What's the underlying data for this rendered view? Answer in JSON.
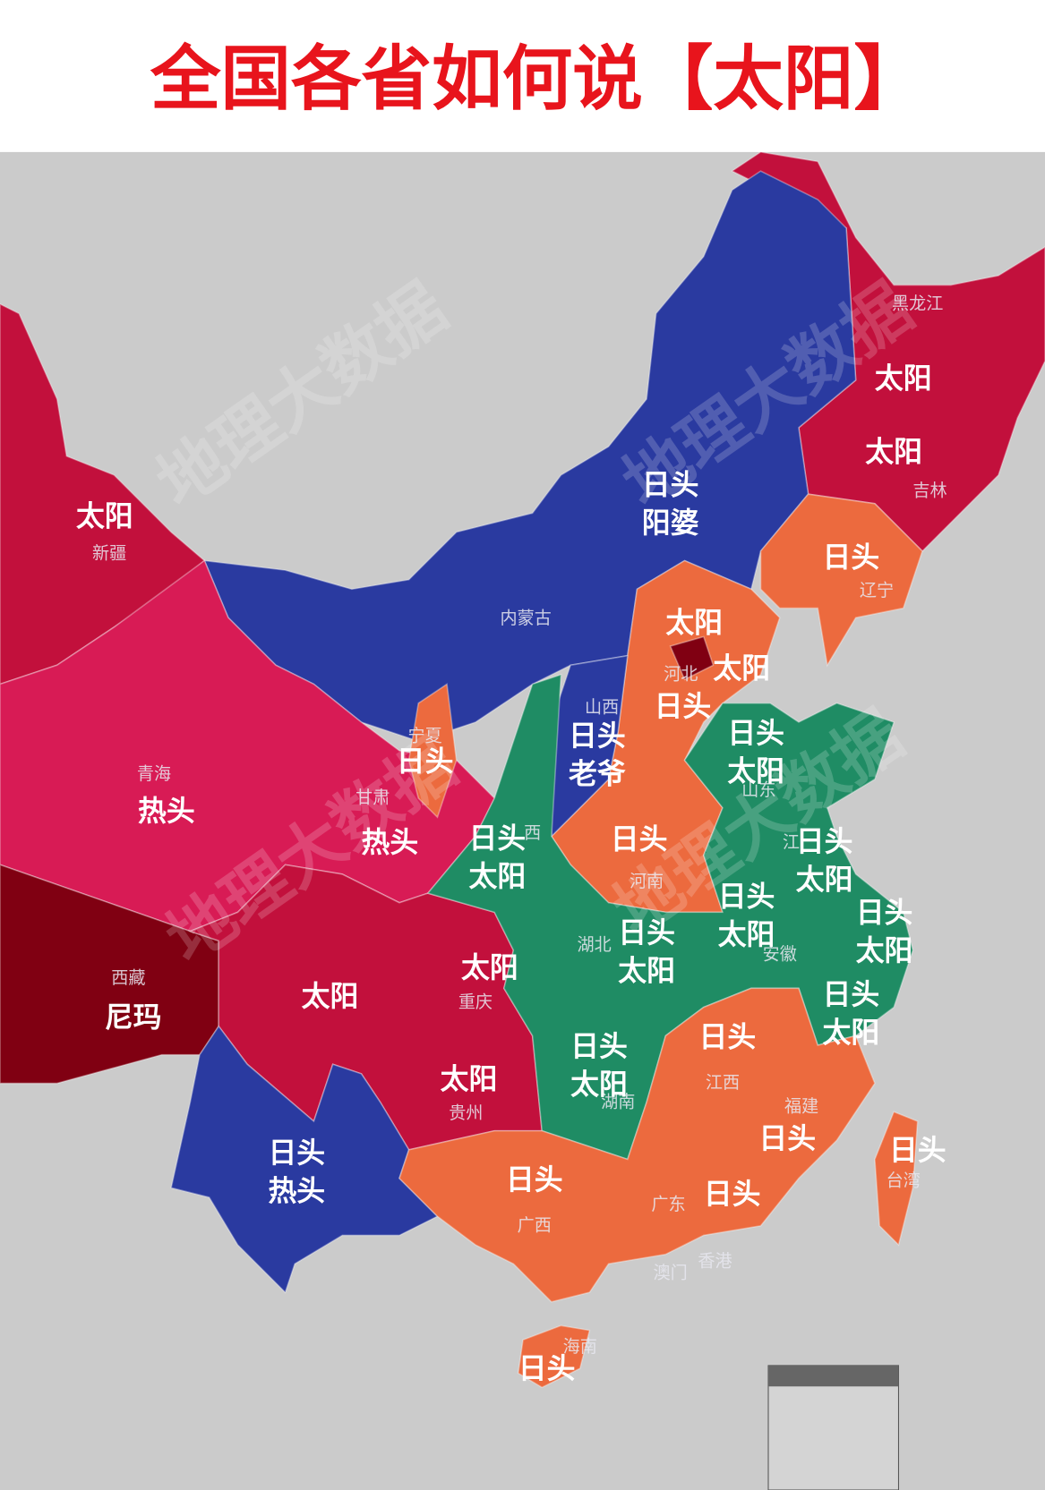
{
  "title": "全国各省如何说【太阳】",
  "watermark": "地理大数据",
  "regions": [
    {
      "name": "黑龙江",
      "words": [
        "太阳"
      ]
    },
    {
      "name": "吉林",
      "words": [
        "太阳"
      ]
    },
    {
      "name": "辽宁",
      "words": [
        "日头"
      ]
    },
    {
      "name": "内蒙古",
      "words": [
        "日头",
        "阳婆"
      ]
    },
    {
      "name": "新疆",
      "words": [
        "太阳"
      ]
    },
    {
      "name": "青海",
      "words": [
        "热头"
      ]
    },
    {
      "name": "甘肃",
      "words": [
        "热头"
      ]
    },
    {
      "name": "宁夏",
      "words": [
        "日头"
      ]
    },
    {
      "name": "西藏",
      "words": [
        "尼玛"
      ]
    },
    {
      "words": [
        "太阳"
      ]
    },
    {
      "name": "重庆",
      "words": [
        "太阳"
      ]
    },
    {
      "name": "贵州",
      "words": [
        "太阳"
      ]
    },
    {
      "words": [
        "日头",
        "热头"
      ]
    },
    {
      "name": "广西",
      "words": [
        "日头"
      ]
    },
    {
      "name": "广东",
      "words": [
        "日头"
      ]
    },
    {
      "name": "海南",
      "words": [
        "日头"
      ]
    },
    {
      "name": "香港"
    },
    {
      "name": "澳门"
    },
    {
      "name": "台湾",
      "words": [
        "日头"
      ]
    },
    {
      "name": "福建",
      "words": [
        "日头"
      ]
    },
    {
      "name": "江西",
      "words": [
        "日头"
      ]
    },
    {
      "name": "湖南",
      "words": [
        "日头",
        "太阳"
      ]
    },
    {
      "name": "湖北",
      "words": [
        "日头",
        "太阳"
      ]
    },
    {
      "name": "安徽",
      "words": [
        "日头",
        "太阳"
      ]
    },
    {
      "words": [
        "日头",
        "太阳"
      ]
    },
    {
      "words": [
        "日头",
        "太阳"
      ]
    },
    {
      "name": "江",
      "words": [
        "日头",
        "太阳"
      ]
    },
    {
      "name": "山东",
      "words": [
        "日头",
        "太阳"
      ]
    },
    {
      "name": "河南",
      "words": [
        "日头"
      ]
    },
    {
      "name": "西",
      "words": [
        "日头",
        "太阳"
      ]
    },
    {
      "name": "山西",
      "words": [
        "日头",
        "老爷"
      ]
    },
    {
      "name": "河北",
      "words": [
        "日头"
      ]
    },
    {
      "words": [
        "太阳"
      ]
    },
    {
      "words": [
        "太阳"
      ]
    }
  ]
}
